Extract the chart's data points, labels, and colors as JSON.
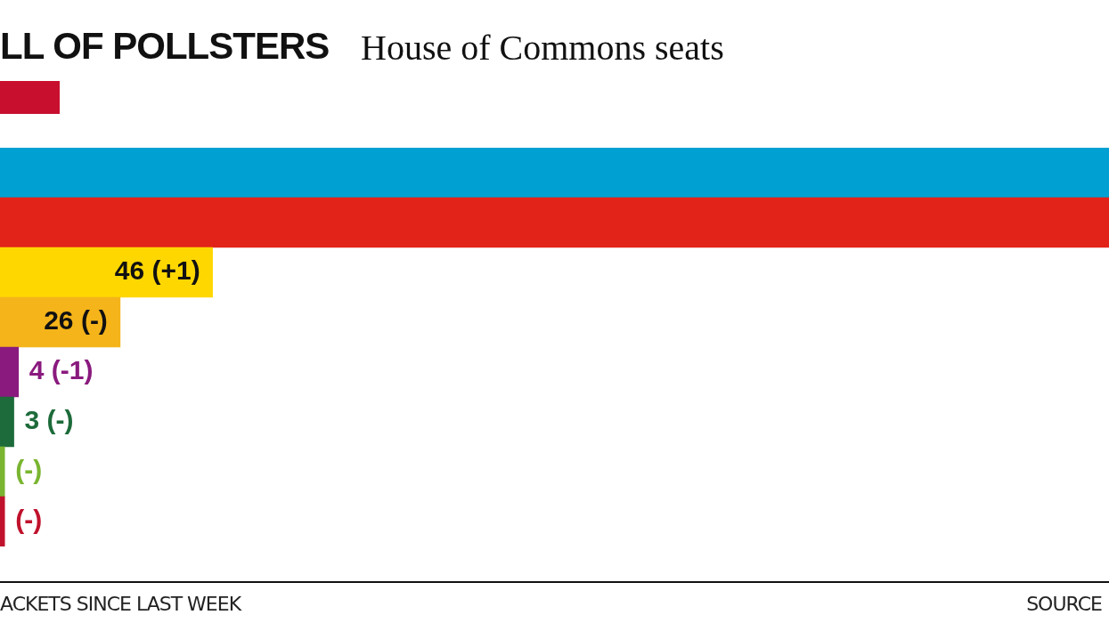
{
  "chart_data": {
    "type": "bar",
    "orientation": "horizontal",
    "title": "LL OF POLLSTERS",
    "subtitle": "House of Commons seats",
    "categories": [
      null,
      null,
      null,
      null,
      null,
      null,
      null,
      null
    ],
    "values": [
      240,
      240,
      46,
      26,
      4,
      3,
      1,
      1
    ],
    "colors": [
      "#00a0d2",
      "#e2231a",
      "#ffd700",
      "#f4b41a",
      "#8a1a7e",
      "#1d6b3a",
      "#7ab531",
      "#c0122c"
    ],
    "value_labels": [
      null,
      null,
      "46 (+1)",
      "26 (-)",
      "4 (-1)",
      "3 (-)",
      "(-)",
      "(-)"
    ],
    "xlim": [
      0,
      240
    ],
    "legend": false,
    "annotations": [
      "ACKETS SINCE LAST WEEK",
      "SOURCE"
    ]
  }
}
